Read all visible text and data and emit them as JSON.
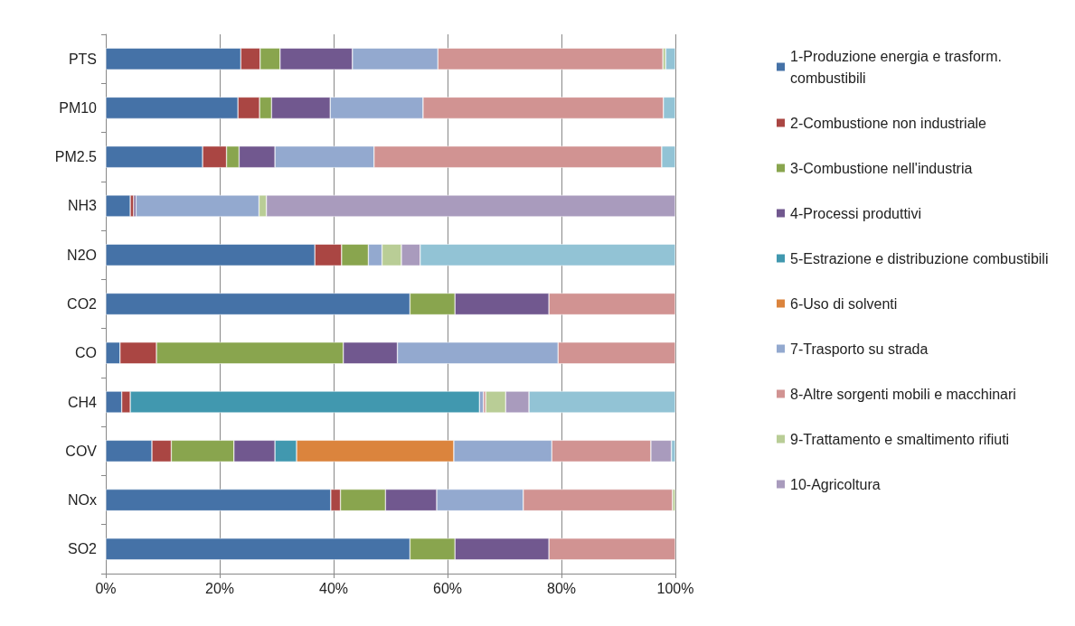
{
  "chart_data": {
    "type": "bar",
    "orientation": "horizontal",
    "stacked": true,
    "categories": [
      "PTS",
      "PM10",
      "PM2.5",
      "NH3",
      "N2O",
      "CO2",
      "CO",
      "CH4",
      "COV",
      "NOx",
      "SO2"
    ],
    "series": [
      {
        "name": "1-Produzione energia e trasform. combustibili",
        "color": "#4572a7",
        "values": [
          23.7,
          23.2,
          17.0,
          4.3,
          36.7,
          53.4,
          2.5,
          2.8,
          8.1,
          39.5,
          53.4
        ]
      },
      {
        "name": "2-Combustione non industriale",
        "color": "#aa4643",
        "values": [
          3.4,
          3.8,
          4.2,
          0.6,
          4.7,
          0,
          6.4,
          1.5,
          3.4,
          1.7,
          0
        ]
      },
      {
        "name": "3-Combustione nell'industria",
        "color": "#89a54e",
        "values": [
          3.5,
          2.1,
          2.2,
          0,
          4.7,
          7.9,
          32.8,
          0,
          11.0,
          7.9,
          7.9
        ]
      },
      {
        "name": "4-Processi produttivi",
        "color": "#71588f",
        "values": [
          12.7,
          10.3,
          6.3,
          0.4,
          0,
          16.5,
          9.5,
          0,
          7.2,
          9.0,
          16.5
        ]
      },
      {
        "name": "5-Estrazione e distribuzione combustibili",
        "color": "#4198af",
        "values": [
          0,
          0,
          0,
          0,
          0,
          0,
          0,
          61.3,
          3.8,
          0,
          0
        ]
      },
      {
        "name": "6-Uso di solventi",
        "color": "#db843d",
        "values": [
          0,
          0,
          0,
          0,
          0,
          0,
          0,
          0,
          27.6,
          0,
          0
        ]
      },
      {
        "name": "7-Trasporto su strada",
        "color": "#93a9cf",
        "values": [
          15.0,
          16.3,
          17.4,
          21.6,
          2.4,
          0,
          28.2,
          0.7,
          17.2,
          15.2,
          0
        ]
      },
      {
        "name": "8-Altre sorgenti mobili e macchinari",
        "color": "#d19392",
        "values": [
          39.5,
          42.2,
          50.5,
          0,
          0,
          22.2,
          20.6,
          0.4,
          17.4,
          26.2,
          22.2
        ]
      },
      {
        "name": "9-Trattamento e smaltimento rifiuti",
        "color": "#b9cd96",
        "values": [
          0.5,
          0,
          0,
          1.3,
          3.4,
          0,
          0,
          3.5,
          0,
          0.5,
          0
        ]
      },
      {
        "name": "10-Agricoltura",
        "color": "#a99bbd",
        "values": [
          0,
          0,
          0,
          71.8,
          3.3,
          0,
          0,
          4.1,
          3.6,
          0,
          0
        ]
      },
      {
        "color": "#92c3d5",
        "values": [
          1.7,
          2.1,
          2.4,
          0,
          44.8,
          0,
          0,
          25.7,
          0.7,
          0,
          0
        ]
      }
    ],
    "xlim": [
      0,
      100
    ],
    "xticks": [
      {
        "value": 0,
        "label": "0%"
      },
      {
        "value": 20,
        "label": "20%"
      },
      {
        "value": 40,
        "label": "40%"
      },
      {
        "value": 60,
        "label": "60%"
      },
      {
        "value": 80,
        "label": "80%"
      },
      {
        "value": 100,
        "label": "100%"
      }
    ],
    "grid": "x",
    "legend": "right"
  }
}
